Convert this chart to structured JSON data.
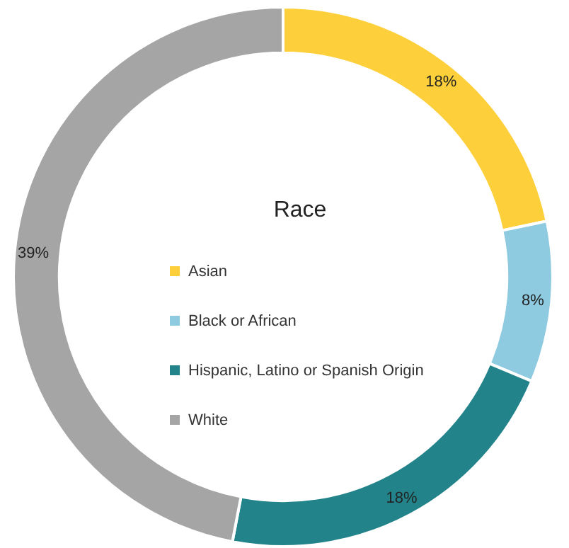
{
  "chart_data": {
    "type": "donut",
    "legend_title": "Race",
    "categories": [
      "Asian",
      "Black or African",
      "Hispanic, Latino or Spanish Origin",
      "White"
    ],
    "values": [
      18,
      8,
      18,
      39
    ],
    "value_labels": [
      "18%",
      "8%",
      "18%",
      "39%"
    ],
    "colors": [
      "#fdd03b",
      "#8ecae0",
      "#22848a",
      "#a5a5a5"
    ],
    "legend": "center"
  }
}
